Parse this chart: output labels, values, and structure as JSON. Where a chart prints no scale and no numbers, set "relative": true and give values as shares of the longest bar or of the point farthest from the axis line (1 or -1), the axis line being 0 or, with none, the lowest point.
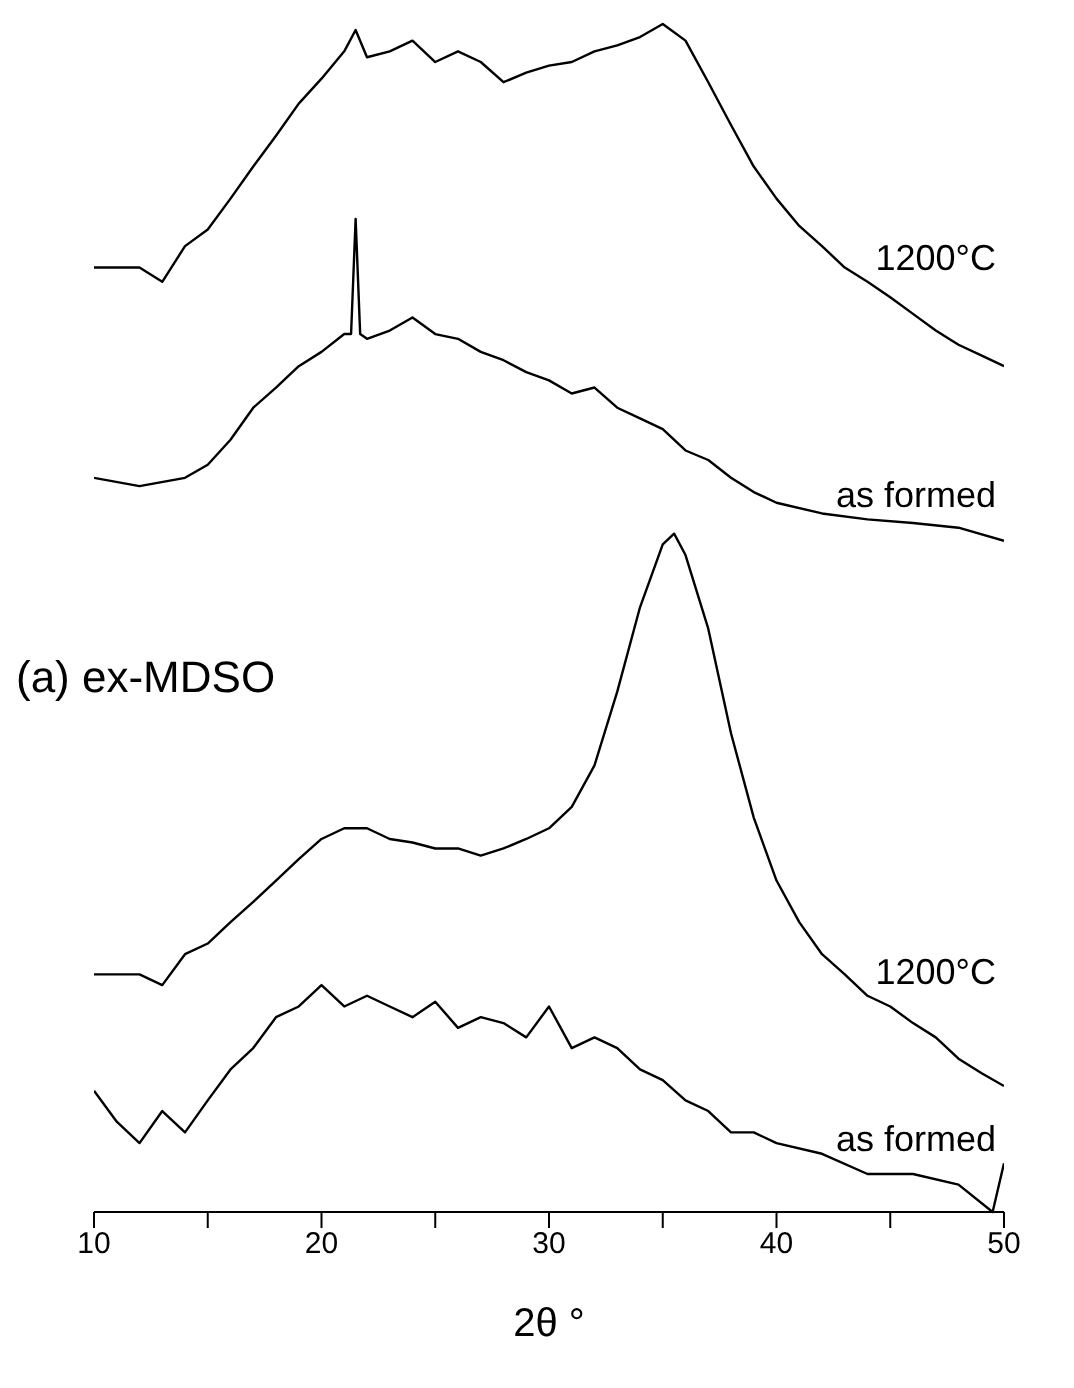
{
  "chart_data": {
    "type": "line",
    "relative": true,
    "xlabel": "2θ °",
    "annotations": [
      "(a) ex-MDSO"
    ],
    "xlim": [
      10,
      50
    ],
    "xticks": [
      10,
      {
        "value": 15,
        "label": null
      },
      20,
      {
        "value": 25,
        "label": null
      },
      30,
      {
        "value": 35,
        "label": null
      },
      40,
      {
        "value": 45,
        "label": null
      },
      50
    ],
    "tick_labels": "x",
    "marker": "none",
    "line_style": "solid",
    "series": [
      {
        "name": "1200°C",
        "color": "#000000",
        "x": [
          10,
          12,
          13,
          14,
          15,
          16,
          17,
          18,
          19,
          20,
          21,
          21.5,
          22,
          23,
          24,
          25,
          26,
          27,
          28,
          29,
          30,
          31,
          32,
          33,
          34,
          35,
          36,
          37,
          38,
          39,
          40,
          41,
          42,
          43,
          44,
          45,
          46,
          47,
          48,
          49,
          50
        ],
        "values": [
          0.795,
          0.795,
          0.783,
          0.813,
          0.827,
          0.853,
          0.88,
          0.906,
          0.933,
          0.954,
          0.977,
          0.995,
          0.972,
          0.977,
          0.986,
          0.968,
          0.977,
          0.968,
          0.951,
          0.959,
          0.965,
          0.968,
          0.977,
          0.982,
          0.989,
          1,
          0.986,
          0.951,
          0.915,
          0.88,
          0.853,
          0.83,
          0.813,
          0.795,
          0.783,
          0.77,
          0.756,
          0.742,
          0.73,
          0.721,
          0.712
        ]
      },
      {
        "name": "as formed",
        "color": "#000000",
        "x": [
          10,
          12,
          14,
          15,
          16,
          17,
          18,
          19,
          20,
          21,
          21.3,
          21.5,
          21.7,
          22,
          23,
          24,
          25,
          26,
          27,
          28,
          29,
          30,
          31,
          32,
          33,
          34,
          35,
          36,
          37,
          38,
          39,
          40,
          42,
          44,
          46,
          48,
          50
        ],
        "values": [
          0.618,
          0.611,
          0.618,
          0.629,
          0.65,
          0.677,
          0.694,
          0.712,
          0.724,
          0.739,
          0.739,
          0.836,
          0.739,
          0.735,
          0.742,
          0.753,
          0.739,
          0.735,
          0.724,
          0.717,
          0.707,
          0.7,
          0.689,
          0.694,
          0.677,
          0.668,
          0.659,
          0.641,
          0.633,
          0.618,
          0.606,
          0.597,
          0.588,
          0.583,
          0.58,
          0.576,
          0.565
        ]
      },
      {
        "name": "1200°C",
        "color": "#000000",
        "x": [
          10,
          12,
          13,
          14,
          15,
          16,
          17,
          18,
          19,
          20,
          21,
          22,
          23,
          24,
          25,
          26,
          27,
          28,
          29,
          30,
          31,
          32,
          33,
          34,
          35,
          35.5,
          36,
          37,
          38,
          39,
          40,
          41,
          42,
          43,
          44,
          45,
          46,
          47,
          48,
          49,
          50
        ],
        "values": [
          0.2,
          0.2,
          0.191,
          0.217,
          0.226,
          0.244,
          0.261,
          0.279,
          0.297,
          0.314,
          0.323,
          0.323,
          0.314,
          0.311,
          0.306,
          0.306,
          0.3,
          0.306,
          0.314,
          0.323,
          0.341,
          0.376,
          0.438,
          0.509,
          0.562,
          0.571,
          0.553,
          0.491,
          0.403,
          0.332,
          0.279,
          0.244,
          0.217,
          0.2,
          0.182,
          0.173,
          0.159,
          0.147,
          0.129,
          0.117,
          0.106
        ]
      },
      {
        "name": "as formed",
        "color": "#000000",
        "x": [
          10,
          11,
          12,
          13,
          14,
          15,
          16,
          17,
          18,
          19,
          20,
          21,
          22,
          23,
          24,
          25,
          26,
          27,
          28,
          29,
          30,
          31,
          32,
          33,
          34,
          35,
          36,
          37,
          38,
          39,
          40,
          42,
          44,
          46,
          48,
          49.5,
          50
        ],
        "values": [
          0.102,
          0.076,
          0.058,
          0.085,
          0.067,
          0.094,
          0.12,
          0.138,
          0.164,
          0.173,
          0.191,
          0.173,
          0.182,
          0.173,
          0.164,
          0.177,
          0.155,
          0.164,
          0.159,
          0.147,
          0.173,
          0.138,
          0.147,
          0.138,
          0.12,
          0.111,
          0.094,
          0.085,
          0.067,
          0.067,
          0.058,
          0.049,
          0.032,
          0.032,
          0.023,
          0,
          0.041
        ]
      }
    ]
  }
}
